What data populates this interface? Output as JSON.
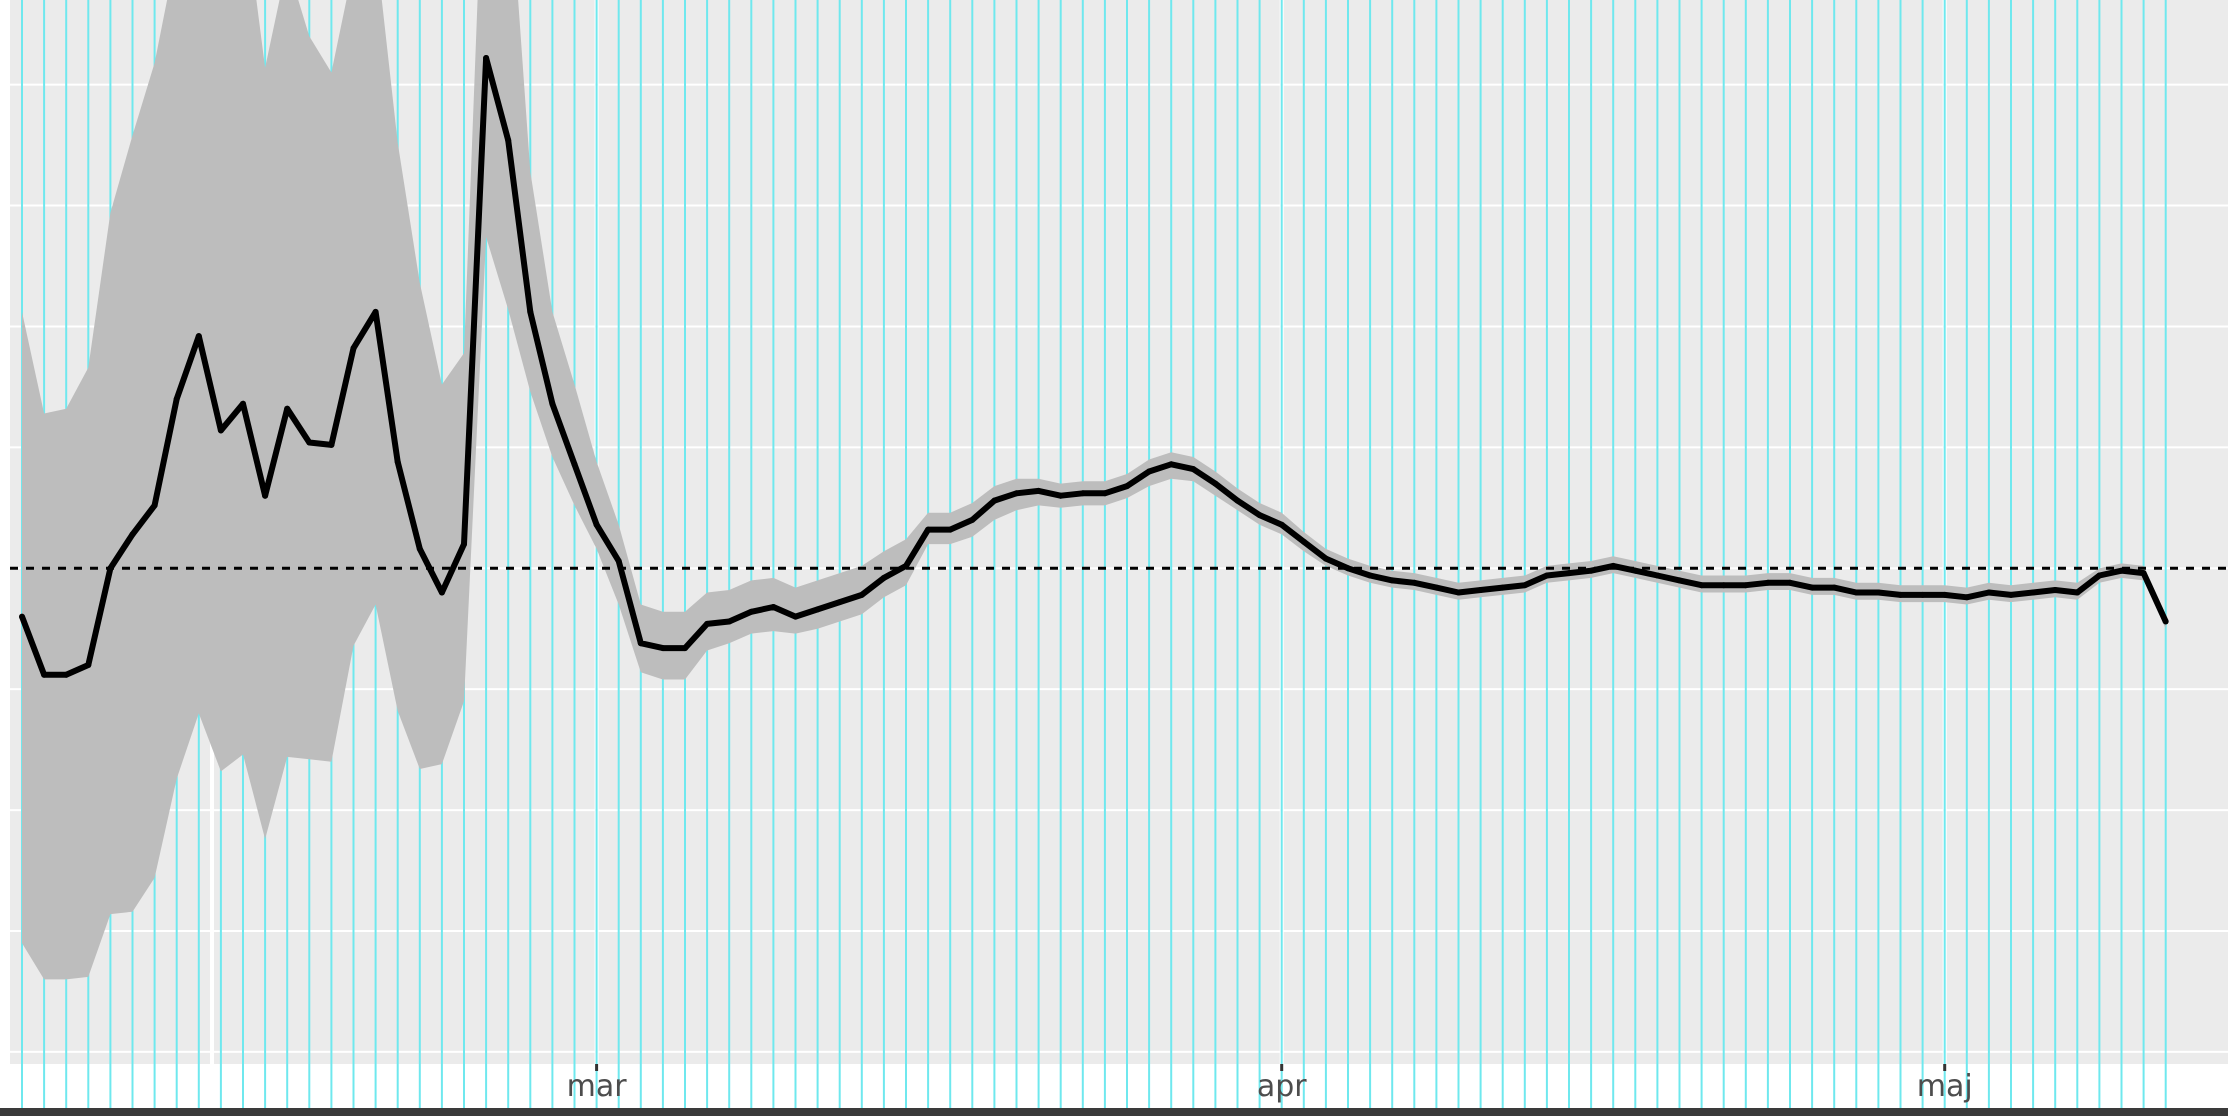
{
  "chart_data": {
    "type": "line",
    "title": "",
    "xlabel": "",
    "ylabel": "",
    "x_tick_labels": [
      "mar",
      "apr",
      "maj"
    ],
    "reference_line": {
      "value": 0.0,
      "style": "dashed"
    },
    "ylim": [
      -2.05,
      2.35
    ],
    "grid": true,
    "series": [
      {
        "values": [
          -0.2,
          -0.44,
          -0.44,
          -0.4,
          0.0,
          0.14,
          0.26,
          0.7,
          0.96,
          0.57,
          0.68,
          0.3,
          0.66,
          0.52,
          0.51,
          0.91,
          1.06,
          0.44,
          0.08,
          -0.1,
          0.1,
          2.11,
          1.77,
          1.06,
          0.68,
          0.43,
          0.18,
          0.03,
          -0.31,
          -0.33,
          -0.33,
          -0.23,
          -0.22,
          -0.18,
          -0.16,
          -0.2,
          -0.17,
          -0.14,
          -0.11,
          -0.04,
          0.01,
          0.16,
          0.16,
          0.2,
          0.28,
          0.31,
          0.32,
          0.3,
          0.31,
          0.31,
          0.34,
          0.4,
          0.43,
          0.41,
          0.35,
          0.28,
          0.22,
          0.18,
          0.11,
          0.04,
          0.0,
          -0.03,
          -0.05,
          -0.06,
          -0.08,
          -0.1,
          -0.09,
          -0.08,
          -0.07,
          -0.03,
          -0.02,
          -0.01,
          0.01,
          -0.01,
          -0.03,
          -0.05,
          -0.07,
          -0.07,
          -0.07,
          -0.06,
          -0.06,
          -0.08,
          -0.08,
          -0.1,
          -0.1,
          -0.11,
          -0.11,
          -0.11,
          -0.12,
          -0.1,
          -0.11,
          -0.1,
          -0.09,
          -0.1,
          -0.03,
          -0.01,
          -0.02,
          -0.22
        ],
        "lower": [
          -1.55,
          -1.7,
          -1.7,
          -1.69,
          -1.43,
          -1.42,
          -1.28,
          -0.87,
          -0.6,
          -0.84,
          -0.77,
          -1.12,
          -0.78,
          -0.79,
          -0.8,
          -0.32,
          -0.15,
          -0.59,
          -0.83,
          -0.81,
          -0.55,
          1.37,
          1.07,
          0.73,
          0.46,
          0.26,
          0.08,
          -0.15,
          -0.43,
          -0.46,
          -0.46,
          -0.34,
          -0.31,
          -0.27,
          -0.26,
          -0.27,
          -0.25,
          -0.22,
          -0.19,
          -0.12,
          -0.07,
          0.1,
          0.1,
          0.13,
          0.2,
          0.24,
          0.26,
          0.25,
          0.26,
          0.26,
          0.29,
          0.34,
          0.37,
          0.36,
          0.3,
          0.24,
          0.18,
          0.14,
          0.07,
          0.01,
          -0.03,
          -0.06,
          -0.08,
          -0.09,
          -0.11,
          -0.13,
          -0.12,
          -0.11,
          -0.1,
          -0.06,
          -0.05,
          -0.04,
          -0.02,
          -0.04,
          -0.06,
          -0.08,
          -0.1,
          -0.1,
          -0.1,
          -0.09,
          -0.09,
          -0.11,
          -0.11,
          -0.13,
          -0.13,
          -0.14,
          -0.14,
          -0.14,
          -0.15,
          -0.13,
          -0.14,
          -0.13,
          -0.12,
          -0.13,
          -0.06,
          -0.04,
          -0.05,
          -0.25
        ],
        "upper": [
          1.06,
          0.64,
          0.66,
          0.83,
          1.47,
          1.79,
          2.09,
          2.55,
          3.29,
          2.61,
          2.78,
          2.07,
          2.5,
          2.2,
          2.05,
          2.49,
          2.58,
          1.76,
          1.18,
          0.76,
          0.89,
          3.27,
          2.93,
          1.64,
          1.06,
          0.76,
          0.44,
          0.18,
          -0.15,
          -0.18,
          -0.18,
          -0.1,
          -0.09,
          -0.05,
          -0.04,
          -0.08,
          -0.05,
          -0.02,
          0.01,
          0.07,
          0.12,
          0.23,
          0.23,
          0.27,
          0.34,
          0.37,
          0.37,
          0.35,
          0.36,
          0.36,
          0.39,
          0.45,
          0.48,
          0.46,
          0.4,
          0.33,
          0.27,
          0.23,
          0.15,
          0.08,
          0.04,
          0.01,
          -0.01,
          -0.02,
          -0.04,
          -0.06,
          -0.05,
          -0.04,
          -0.03,
          0.01,
          0.02,
          0.03,
          0.05,
          0.03,
          0.01,
          -0.01,
          -0.03,
          -0.03,
          -0.03,
          -0.02,
          -0.02,
          -0.04,
          -0.04,
          -0.06,
          -0.06,
          -0.07,
          -0.07,
          -0.07,
          -0.08,
          -0.06,
          -0.07,
          -0.06,
          -0.05,
          -0.06,
          0.0,
          0.02,
          0.01,
          -0.19
        ]
      }
    ]
  },
  "colors": {
    "panel_background": "#ebebeb",
    "major_grid": "#ffffff",
    "minor_grid_overlay": "#6fe8ee",
    "ribbon": "#bdbdbd",
    "line": "#000000",
    "reference_line": "#000000",
    "tick_label": "#4d4d4d"
  }
}
